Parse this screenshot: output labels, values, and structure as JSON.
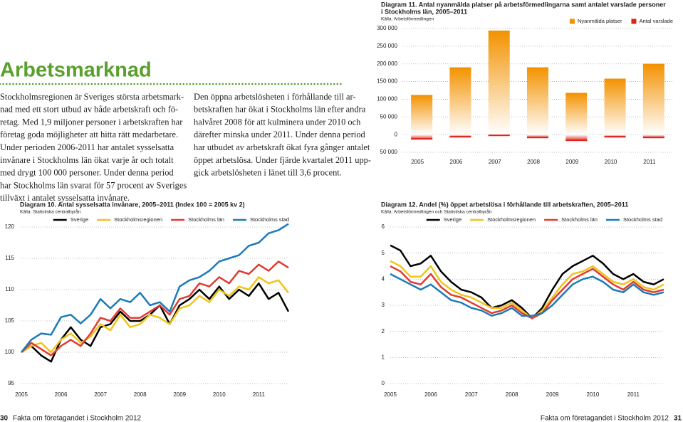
{
  "page": {
    "heading": "Arbetsmarknad",
    "left_text": [
      "Stockholmsregionen är Sveriges största arbetsmark-",
      "nad med ett stort utbud av både arbetskraft och fö-",
      "retag. Med 1,9 miljoner personer i arbetskraften har",
      "företag goda möjligheter att hitta rätt medarbetare.",
      "Under perioden 2006-2011 har antalet sysselsatta",
      "invånare i Stockholms län ökat varje år och totalt",
      "med drygt 100 000 personer. Under denna period",
      "har Stockholms län svarat för 57 procent av Sveriges",
      "tillväxt i antalet sysselsatta invånare."
    ],
    "middle_text": [
      "Den öppna arbetslösheten i förhållande till ar-",
      "betskraften har ökat i Stockholms län efter andra",
      "halvåret 2008 för att kulminera under 2010 och",
      "därefter minska under 2011. Under denna period",
      "har utbudet av arbetskraft ökat fyra gånger antalet",
      "öppet arbetslösa. Under fjärde kvartalet 2011 upp-",
      "gick arbetslösheten i länet till 3,6 procent."
    ],
    "footer_left": {
      "page": "30",
      "text": "Fakta om företagandet i Stockholm 2012"
    },
    "footer_right": {
      "page": "31",
      "text": "Fakta om företagandet i Stockholm 2012"
    }
  },
  "chart_data": [
    {
      "type": "bar",
      "title": [
        "Diagram 11. Antal nyanmälda platser på arbetsförmedlingarna samt antalet varslade personer",
        "i Stockholms län, 2005–2011"
      ],
      "source": "Källa: Arbetsförmedlingen",
      "categories": [
        "2005",
        "2006",
        "2007",
        "2008",
        "2009",
        "2010",
        "2011"
      ],
      "series": [
        {
          "name": "Nyanmälda platser",
          "color": "#f39200",
          "values": [
            112000,
            190000,
            294000,
            190000,
            118000,
            158000,
            200000
          ]
        },
        {
          "name": "Antal varslade",
          "color": "#e2231a",
          "values": [
            -14000,
            -8000,
            -4000,
            -10000,
            -18000,
            -8000,
            -10000
          ]
        }
      ],
      "ylim": [
        -50000,
        300000
      ],
      "yticks": [
        {
          "value": -50000,
          "label": "50 000"
        },
        0,
        {
          "value": 50000,
          "label": "50 000"
        },
        {
          "value": 100000,
          "label": "100 000"
        },
        {
          "value": 150000,
          "label": "150 000"
        },
        {
          "value": 200000,
          "label": "200 000"
        },
        {
          "value": 250000,
          "label": "250 000"
        },
        {
          "value": 300000,
          "label": "300 000"
        }
      ],
      "grid": true,
      "legend": "top-right"
    },
    {
      "type": "line",
      "title": [
        "Diagram 10. Antal sysselsatta invånare, 2005–2011 (Index 100 = 2005 kv 2)"
      ],
      "source": "Källa: Statistiska centralbyrån",
      "categories": [
        "2005",
        null,
        null,
        null,
        "2006",
        null,
        null,
        null,
        "2007",
        null,
        null,
        null,
        "2008",
        null,
        null,
        null,
        "2009",
        null,
        null,
        null,
        "2010",
        null,
        null,
        null,
        "2011",
        null,
        null,
        null
      ],
      "series": [
        {
          "name": "Sverige",
          "color": "#000000",
          "values": [
            100,
            101,
            99.5,
            98.5,
            102,
            104,
            102,
            101,
            104,
            104.5,
            106.5,
            105,
            105,
            106,
            107.5,
            104.5,
            107.5,
            108.5,
            110,
            108.5,
            110.5,
            108.5,
            110,
            109,
            111,
            108.5,
            109.5,
            106.5
          ]
        },
        {
          "name": "Stockholmsregionen",
          "color": "#f0c419",
          "values": [
            100,
            101,
            101.5,
            100,
            102,
            103,
            101.5,
            102.5,
            104.5,
            103.5,
            106,
            104,
            104.5,
            106,
            105.5,
            104.5,
            107,
            107.5,
            109,
            108,
            110,
            109,
            110.5,
            110,
            112,
            111,
            111.5,
            109.5
          ]
        },
        {
          "name": "Stockholms län",
          "color": "#e03c31",
          "values": [
            100,
            101.5,
            100.5,
            99.5,
            101,
            102,
            101,
            103,
            105.5,
            105,
            107,
            105.5,
            105.5,
            106.5,
            107.5,
            106,
            108.5,
            109,
            111,
            110.5,
            112,
            111,
            113,
            112.5,
            114,
            113,
            114.5,
            113.5
          ]
        },
        {
          "name": "Stockholms stad",
          "color": "#1a7bb9",
          "values": [
            100,
            102,
            103,
            102.8,
            105.6,
            106,
            104.6,
            106,
            108.5,
            107,
            108.5,
            108,
            109.5,
            107.5,
            108,
            106.5,
            110.5,
            111.5,
            112,
            113,
            114.5,
            115,
            115.5,
            117,
            117.5,
            119,
            119.5,
            120.5
          ]
        }
      ],
      "ylim": [
        95,
        120
      ],
      "yticks": [
        95,
        100,
        105,
        110,
        115,
        120
      ],
      "grid": true,
      "legend": "top-right"
    },
    {
      "type": "line",
      "title": [
        "Diagram 12. Andel (%) öppet arbetslösa i förhållande till arbetskraften, 2005–2011"
      ],
      "source": "Källa: Arbetsförmedlingen och Statistiska centralbyrån",
      "categories": [
        "2005",
        null,
        null,
        null,
        "2006",
        null,
        null,
        null,
        "2007",
        null,
        null,
        null,
        "2008",
        null,
        null,
        null,
        "2009",
        null,
        null,
        null,
        "2010",
        null,
        null,
        null,
        "2011",
        null,
        null,
        null
      ],
      "series": [
        {
          "name": "Sverige",
          "color": "#000000",
          "values": [
            5.3,
            5.1,
            4.5,
            4.6,
            4.9,
            4.3,
            3.9,
            3.6,
            3.5,
            3.3,
            2.9,
            3.0,
            3.2,
            2.9,
            2.5,
            2.9,
            3.6,
            4.2,
            4.5,
            4.7,
            4.9,
            4.6,
            4.2,
            4.0,
            4.2,
            3.9,
            3.8,
            4.0
          ]
        },
        {
          "name": "Stockholmsregionen",
          "color": "#f0c419",
          "values": [
            4.7,
            4.5,
            4.1,
            4.1,
            4.5,
            3.9,
            3.6,
            3.4,
            3.3,
            3.1,
            2.9,
            2.9,
            3.1,
            2.8,
            2.5,
            2.8,
            3.3,
            3.8,
            4.2,
            4.3,
            4.5,
            4.2,
            3.9,
            3.8,
            4.0,
            3.7,
            3.6,
            3.8
          ]
        },
        {
          "name": "Stockholms län",
          "color": "#e03c31",
          "values": [
            4.5,
            4.3,
            3.9,
            3.8,
            4.2,
            3.7,
            3.4,
            3.3,
            3.1,
            2.9,
            2.7,
            2.8,
            3.0,
            2.7,
            2.5,
            2.7,
            3.2,
            3.6,
            4.0,
            4.2,
            4.4,
            4.1,
            3.8,
            3.6,
            3.9,
            3.6,
            3.5,
            3.6
          ]
        },
        {
          "name": "Stockholms stad",
          "color": "#1a7bb9",
          "values": [
            4.2,
            4.0,
            3.8,
            3.6,
            3.8,
            3.5,
            3.2,
            3.1,
            2.9,
            2.8,
            2.6,
            2.7,
            2.9,
            2.6,
            2.6,
            2.7,
            3.0,
            3.4,
            3.8,
            4.0,
            4.1,
            3.9,
            3.6,
            3.5,
            3.8,
            3.5,
            3.4,
            3.5
          ]
        }
      ],
      "ylim": [
        0,
        6
      ],
      "yticks": [
        0,
        1,
        2,
        3,
        4,
        5,
        6
      ],
      "grid": true,
      "legend": "top-right"
    }
  ]
}
